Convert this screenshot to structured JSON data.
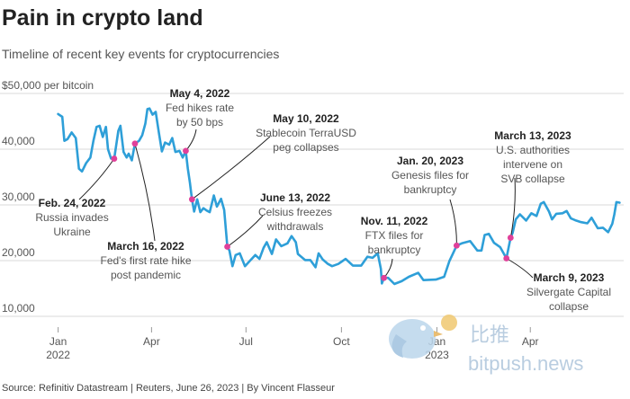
{
  "header": {
    "title": "Pain in crypto land",
    "subtitle": "Timeline of recent key events for cryptocurrencies"
  },
  "footer": {
    "source": "Source: Refinitiv Datastream | Reuters, June 26, 2023 | By Vincent Flasseur"
  },
  "watermark": {
    "cn": "比推",
    "en": "bitpush.news"
  },
  "colors": {
    "line": "#2e9fd8",
    "marker": "#e0409a",
    "grid": "#d9d9d9",
    "text": "#333333"
  },
  "chart_data": {
    "type": "line",
    "title": "Pain in crypto land",
    "subtitle": "Timeline of recent key events for cryptocurrencies",
    "ylabel": "$50,000 per bitcoin",
    "ylim": [
      10000,
      50000
    ],
    "yticks": [
      {
        "value": 50000,
        "label": "$50,000 per bitcoin"
      },
      {
        "value": 40000,
        "label": "40,000"
      },
      {
        "value": 30000,
        "label": "30,000"
      },
      {
        "value": 20000,
        "label": "20,000"
      },
      {
        "value": 10000,
        "label": "10,000"
      }
    ],
    "xlim": [
      "2021-12-28",
      "2023-06-30"
    ],
    "xticks": [
      {
        "date": "2022-01-01",
        "label": "Jan",
        "sublabel": "2022"
      },
      {
        "date": "2022-04-01",
        "label": "Apr",
        "sublabel": ""
      },
      {
        "date": "2022-07-01",
        "label": "Jul",
        "sublabel": ""
      },
      {
        "date": "2022-10-01",
        "label": "Oct",
        "sublabel": ""
      },
      {
        "date": "2023-01-01",
        "label": "Jan",
        "sublabel": "2023"
      },
      {
        "date": "2023-04-01",
        "label": "Apr",
        "sublabel": ""
      }
    ],
    "grid": "horizontal",
    "series": [
      {
        "points": [
          [
            "2022-01-01",
            46300
          ],
          [
            "2022-01-05",
            45800
          ],
          [
            "2022-01-07",
            41500
          ],
          [
            "2022-01-10",
            41800
          ],
          [
            "2022-01-14",
            43000
          ],
          [
            "2022-01-18",
            42000
          ],
          [
            "2022-01-21",
            36500
          ],
          [
            "2022-01-24",
            36000
          ],
          [
            "2022-01-28",
            37500
          ],
          [
            "2022-02-01",
            38500
          ],
          [
            "2022-02-04",
            41500
          ],
          [
            "2022-02-07",
            44000
          ],
          [
            "2022-02-10",
            44200
          ],
          [
            "2022-02-13",
            42200
          ],
          [
            "2022-02-16",
            44000
          ],
          [
            "2022-02-18",
            40000
          ],
          [
            "2022-02-21",
            38300
          ],
          [
            "2022-02-24",
            38300
          ],
          [
            "2022-02-28",
            43300
          ],
          [
            "2022-03-02",
            44200
          ],
          [
            "2022-03-05",
            39500
          ],
          [
            "2022-03-08",
            38500
          ],
          [
            "2022-03-10",
            39200
          ],
          [
            "2022-03-13",
            38000
          ],
          [
            "2022-03-16",
            41000
          ],
          [
            "2022-03-20",
            41500
          ],
          [
            "2022-03-23",
            42500
          ],
          [
            "2022-03-26",
            44600
          ],
          [
            "2022-03-28",
            47200
          ],
          [
            "2022-03-30",
            47300
          ],
          [
            "2022-04-02",
            46200
          ],
          [
            "2022-04-05",
            46700
          ],
          [
            "2022-04-08",
            43000
          ],
          [
            "2022-04-11",
            39600
          ],
          [
            "2022-04-14",
            41200
          ],
          [
            "2022-04-18",
            40800
          ],
          [
            "2022-04-21",
            42000
          ],
          [
            "2022-04-24",
            39500
          ],
          [
            "2022-04-28",
            39700
          ],
          [
            "2022-05-01",
            38500
          ],
          [
            "2022-05-04",
            39700
          ],
          [
            "2022-05-06",
            36500
          ],
          [
            "2022-05-08",
            34000
          ],
          [
            "2022-05-10",
            31000
          ],
          [
            "2022-05-12",
            28800
          ],
          [
            "2022-05-15",
            31000
          ],
          [
            "2022-05-18",
            28700
          ],
          [
            "2022-05-21",
            29400
          ],
          [
            "2022-05-24",
            29000
          ],
          [
            "2022-05-27",
            28700
          ],
          [
            "2022-05-31",
            31700
          ],
          [
            "2022-06-03",
            29700
          ],
          [
            "2022-06-07",
            31100
          ],
          [
            "2022-06-10",
            29100
          ],
          [
            "2022-06-13",
            22500
          ],
          [
            "2022-06-15",
            21800
          ],
          [
            "2022-06-18",
            19000
          ],
          [
            "2022-06-21",
            21000
          ],
          [
            "2022-06-25",
            21300
          ],
          [
            "2022-06-30",
            19000
          ],
          [
            "2022-07-05",
            20000
          ],
          [
            "2022-07-10",
            21000
          ],
          [
            "2022-07-14",
            20300
          ],
          [
            "2022-07-18",
            22300
          ],
          [
            "2022-07-21",
            23300
          ],
          [
            "2022-07-26",
            21200
          ],
          [
            "2022-07-30",
            23800
          ],
          [
            "2022-08-04",
            22600
          ],
          [
            "2022-08-10",
            23100
          ],
          [
            "2022-08-14",
            24400
          ],
          [
            "2022-08-18",
            23300
          ],
          [
            "2022-08-20",
            21200
          ],
          [
            "2022-08-27",
            20100
          ],
          [
            "2022-09-01",
            20100
          ],
          [
            "2022-09-06",
            18800
          ],
          [
            "2022-09-09",
            21300
          ],
          [
            "2022-09-13",
            20200
          ],
          [
            "2022-09-18",
            19400
          ],
          [
            "2022-09-22",
            19000
          ],
          [
            "2022-09-28",
            19400
          ],
          [
            "2022-10-05",
            20300
          ],
          [
            "2022-10-12",
            19100
          ],
          [
            "2022-10-20",
            19100
          ],
          [
            "2022-10-26",
            20700
          ],
          [
            "2022-10-31",
            20500
          ],
          [
            "2022-11-05",
            21300
          ],
          [
            "2022-11-08",
            18500
          ],
          [
            "2022-11-09",
            15900
          ],
          [
            "2022-11-11",
            16900
          ],
          [
            "2022-11-15",
            16900
          ],
          [
            "2022-11-21",
            15800
          ],
          [
            "2022-11-28",
            16300
          ],
          [
            "2022-12-05",
            17100
          ],
          [
            "2022-12-14",
            17800
          ],
          [
            "2022-12-19",
            16500
          ],
          [
            "2022-12-31",
            16600
          ],
          [
            "2023-01-08",
            17100
          ],
          [
            "2023-01-13",
            19900
          ],
          [
            "2023-01-16",
            21100
          ],
          [
            "2023-01-20",
            22700
          ],
          [
            "2023-01-25",
            23100
          ],
          [
            "2023-02-02",
            23500
          ],
          [
            "2023-02-09",
            21800
          ],
          [
            "2023-02-13",
            21800
          ],
          [
            "2023-02-16",
            24600
          ],
          [
            "2023-02-20",
            24800
          ],
          [
            "2023-02-25",
            23200
          ],
          [
            "2023-03-03",
            22400
          ],
          [
            "2023-03-09",
            20400
          ],
          [
            "2023-03-13",
            24100
          ],
          [
            "2023-03-15",
            25000
          ],
          [
            "2023-03-18",
            27400
          ],
          [
            "2023-03-22",
            28300
          ],
          [
            "2023-03-28",
            27200
          ],
          [
            "2023-04-02",
            28500
          ],
          [
            "2023-04-07",
            28000
          ],
          [
            "2023-04-11",
            30200
          ],
          [
            "2023-04-14",
            30500
          ],
          [
            "2023-04-19",
            28800
          ],
          [
            "2023-04-22",
            27400
          ],
          [
            "2023-04-26",
            28400
          ],
          [
            "2023-05-02",
            28500
          ],
          [
            "2023-05-06",
            28900
          ],
          [
            "2023-05-10",
            27600
          ],
          [
            "2023-05-15",
            27200
          ],
          [
            "2023-05-20",
            26900
          ],
          [
            "2023-05-26",
            26700
          ],
          [
            "2023-05-30",
            27700
          ],
          [
            "2023-06-05",
            25800
          ],
          [
            "2023-06-10",
            25900
          ],
          [
            "2023-06-15",
            25100
          ],
          [
            "2023-06-19",
            26600
          ],
          [
            "2023-06-21",
            28300
          ],
          [
            "2023-06-23",
            30500
          ],
          [
            "2023-06-26",
            30400
          ]
        ]
      }
    ],
    "annotations": [
      {
        "id": "feb24",
        "date": "2022-02-24",
        "value": 38300,
        "title": "Feb. 24, 2022",
        "lines": [
          "Russia invades",
          "Ukraine"
        ]
      },
      {
        "id": "mar16",
        "date": "2022-03-16",
        "value": 41000,
        "title": "March 16, 2022",
        "lines": [
          "Fed's first rate hike",
          "post pandemic"
        ]
      },
      {
        "id": "may4",
        "date": "2022-05-04",
        "value": 39700,
        "title": "May 4, 2022",
        "lines": [
          "Fed hikes rate",
          "by 50 bps"
        ]
      },
      {
        "id": "may10",
        "date": "2022-05-10",
        "value": 31000,
        "title": "May 10, 2022",
        "lines": [
          "Stablecoin TerraUSD",
          "peg collapses"
        ]
      },
      {
        "id": "jun13",
        "date": "2022-06-13",
        "value": 22500,
        "title": "June 13, 2022",
        "lines": [
          "Celsius freezes",
          "withdrawals"
        ]
      },
      {
        "id": "nov11",
        "date": "2022-11-11",
        "value": 16900,
        "title": "Nov. 11, 2022",
        "lines": [
          "FTX files for",
          "bankruptcy"
        ]
      },
      {
        "id": "jan20",
        "date": "2023-01-20",
        "value": 22700,
        "title": "Jan. 20, 2023",
        "lines": [
          "Genesis files for",
          "bankruptcy"
        ]
      },
      {
        "id": "mar13",
        "date": "2023-03-13",
        "value": 24100,
        "title": "March 13, 2023",
        "lines": [
          "U.S. authorities",
          "intervene on",
          "SVB collapse"
        ]
      },
      {
        "id": "mar9",
        "date": "2023-03-09",
        "value": 20400,
        "title": "March 9, 2023",
        "lines": [
          "Silvergate Capital",
          "collapse"
        ]
      }
    ]
  }
}
